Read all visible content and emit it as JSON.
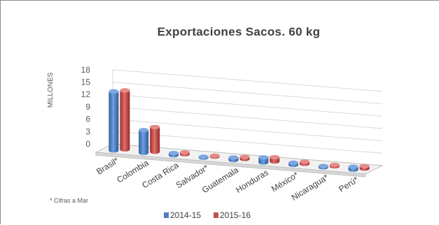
{
  "chart_data": {
    "type": "bar",
    "title": "Exportaciones Sacos. 60 kg",
    "xlabel": "",
    "ylabel": "MILLONES",
    "ylim": [
      0,
      18
    ],
    "yticks": [
      "0",
      "3",
      "6",
      "9",
      "12",
      "15",
      "18"
    ],
    "categories": [
      "Brasil*",
      "Colombia",
      "Costa Rica",
      "Salvador*",
      "Guatemala",
      "Honduras",
      "México*",
      "Nicaragua*",
      "Perú*"
    ],
    "series": [
      {
        "name": "2014-15",
        "color": "#4f81bd",
        "values": [
          14.3,
          5.5,
          0.5,
          0.2,
          0.6,
          1.2,
          0.5,
          0.3,
          0.7
        ]
      },
      {
        "name": "2015-16",
        "color": "#c0504d",
        "values": [
          14.3,
          6.0,
          0.4,
          0.2,
          0.5,
          1.0,
          0.5,
          0.3,
          0.6
        ]
      }
    ],
    "grid": true,
    "legend_position": "bottom",
    "footnote": "* Cifras a Mar"
  }
}
